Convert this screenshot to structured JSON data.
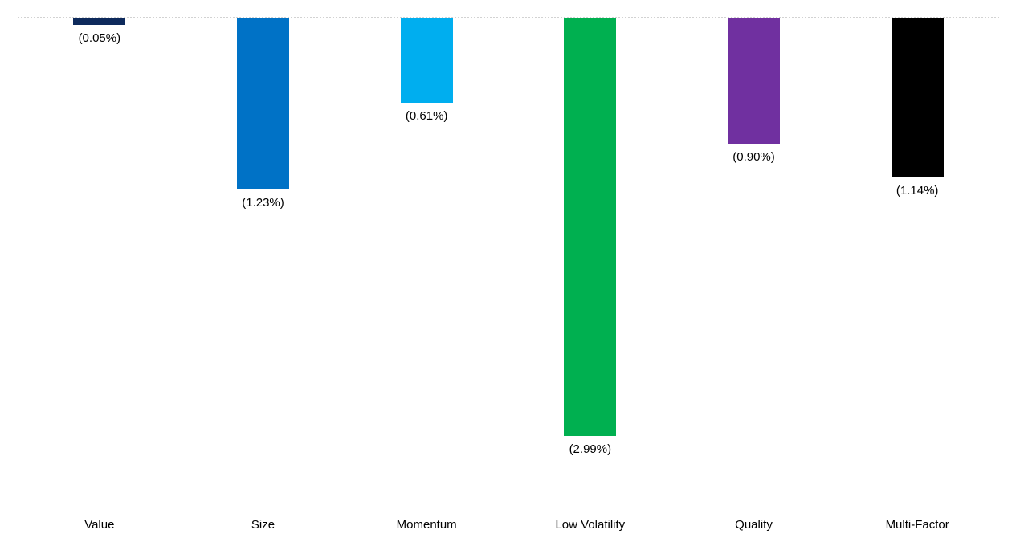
{
  "chart_data": {
    "type": "bar",
    "title": "",
    "xlabel": "",
    "ylabel": "",
    "categories": [
      "Value",
      "Size",
      "Momentum",
      "Low Volatility",
      "Quality",
      "Multi-Factor"
    ],
    "values": [
      -0.05,
      -1.23,
      -0.61,
      -2.99,
      -0.9,
      -1.14
    ],
    "value_labels": [
      "(0.05%)",
      "(1.23%)",
      "(0.61%)",
      "(2.99%)",
      "(0.90%)",
      "(1.14%)"
    ],
    "value_label_format": "accounting-percent-parentheses",
    "bar_colors": [
      "#0E2A5C",
      "#0072C6",
      "#00AEEF",
      "#00B050",
      "#7030A0",
      "#000000"
    ],
    "ylim": [
      -3.5,
      0
    ],
    "grid": "zero-baseline-only",
    "baseline_style": "dotted",
    "baseline_color": "#D2D2D2",
    "legend": "none",
    "background_color": "#FFFFFF",
    "text_color": "#000000"
  }
}
